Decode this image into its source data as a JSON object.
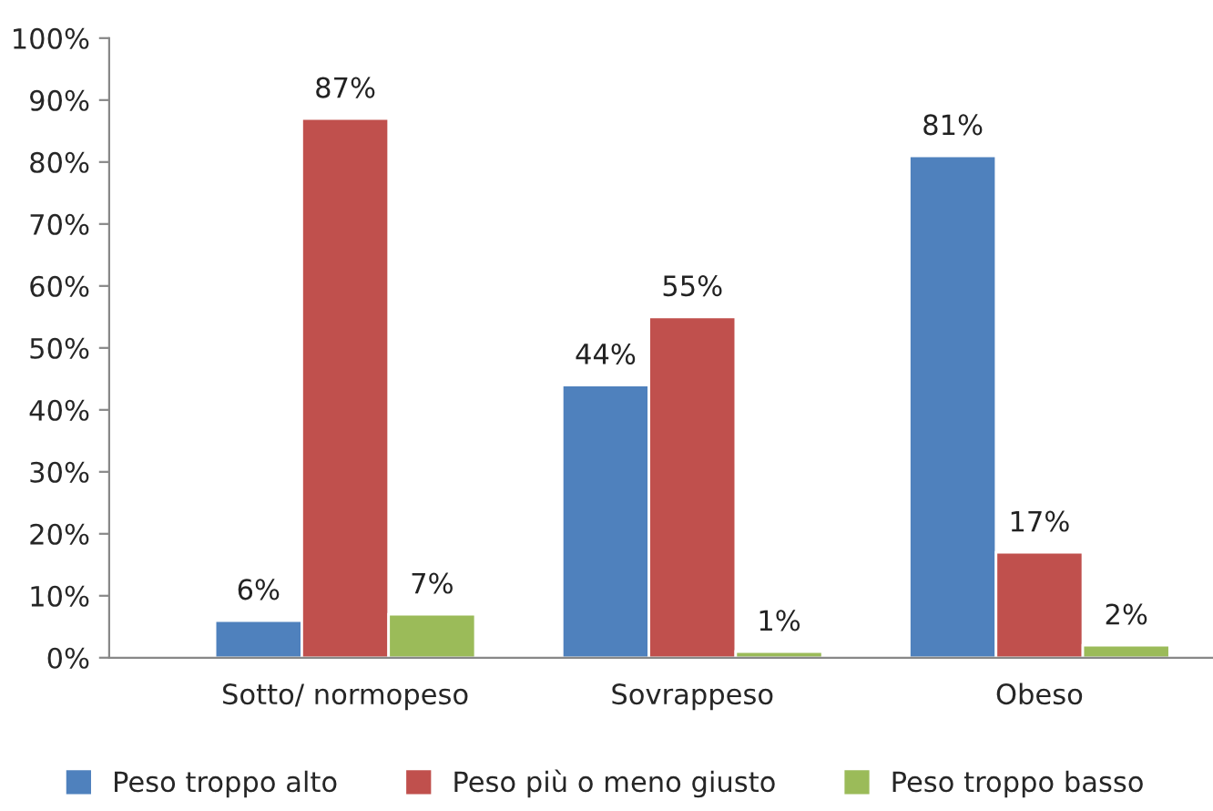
{
  "chart_data": {
    "type": "bar",
    "categories": [
      "Sotto/ normopeso",
      "Sovrappeso",
      "Obeso"
    ],
    "series": [
      {
        "name": "Peso troppo alto",
        "color": "#4f81bd",
        "values": [
          6,
          44,
          81
        ],
        "value_labels": [
          "6%",
          "44%",
          "81%"
        ]
      },
      {
        "name": "Peso più o meno giusto",
        "color": "#c0504d",
        "values": [
          87,
          55,
          17
        ],
        "value_labels": [
          "87%",
          "55%",
          "17%"
        ]
      },
      {
        "name": "Peso troppo basso",
        "color": "#9bbb59",
        "values": [
          7,
          1,
          2
        ],
        "value_labels": [
          "7%",
          "1%",
          "2%"
        ]
      }
    ],
    "ylim": [
      0,
      100
    ],
    "yticks": [
      {
        "value": 0,
        "label": "0%"
      },
      {
        "value": 10,
        "label": "10%"
      },
      {
        "value": 20,
        "label": "20%"
      },
      {
        "value": 30,
        "label": "30%"
      },
      {
        "value": 40,
        "label": "40%"
      },
      {
        "value": 50,
        "label": "50%"
      },
      {
        "value": 60,
        "label": "60%"
      },
      {
        "value": 70,
        "label": "70%"
      },
      {
        "value": 80,
        "label": "80%"
      },
      {
        "value": 90,
        "label": "90%"
      },
      {
        "value": 100,
        "label": "100%"
      }
    ],
    "grid": false,
    "legend": "bottom"
  }
}
